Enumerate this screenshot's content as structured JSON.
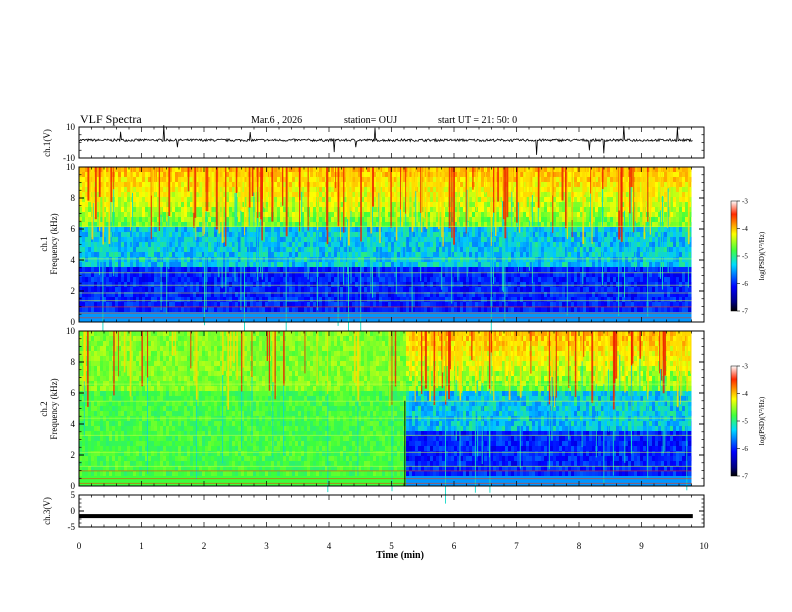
{
  "header": {
    "title": "VLF Spectra",
    "date": "Mar.6  , 2026",
    "station": "station= OUJ",
    "start": "start  UT  =   21: 50: 0"
  },
  "colors": {
    "spectrogram_low": "#00007f",
    "spectrogram_high": "#bf0000",
    "trace": "#000000"
  },
  "chart_data": [
    {
      "type": "line",
      "name": "ch1-waveform",
      "ylabel": "ch.1(V)",
      "ylim": [
        -10,
        10
      ],
      "yticks": [
        "10",
        "-10"
      ],
      "xlim": [
        0,
        10
      ],
      "description_value_baseline": 1.5
    },
    {
      "type": "heatmap",
      "name": "ch1-spectrogram",
      "ylabel": "ch.1\nFrequency  (kHz)",
      "ylabel_lines": [
        "ch.1",
        "Frequency  (kHz)"
      ],
      "ylim": [
        0,
        10
      ],
      "yticks": [
        "10",
        "8",
        "6",
        "4",
        "2",
        "0"
      ],
      "xlim": [
        0,
        10
      ],
      "data_end_min": 9.8,
      "colorbar": {
        "label": "log(PSD)(V²/Hz)",
        "range": [
          -7,
          -3
        ],
        "ticks": [
          "-3",
          "-4",
          "-5",
          "-6",
          "-7"
        ]
      }
    },
    {
      "type": "heatmap",
      "name": "ch2-spectrogram",
      "ylabel": "ch.2\nFrequency  (kHz)",
      "ylabel_lines": [
        "ch.2",
        "Frequency  (kHz)"
      ],
      "ylim": [
        0,
        10
      ],
      "yticks": [
        "10",
        "8",
        "6",
        "4",
        "2",
        "0"
      ],
      "xlim": [
        0,
        10
      ],
      "data_end_min": 9.8,
      "transition_min": 5.2,
      "colorbar": {
        "label": "log(PSD)(V²/Hz)",
        "range": [
          -7,
          -3
        ],
        "ticks": [
          "-3",
          "-4",
          "-5",
          "-6",
          "-7"
        ]
      }
    },
    {
      "type": "line",
      "name": "ch3-waveform",
      "ylabel": "ch.3(V)",
      "ylim": [
        -5,
        5
      ],
      "yticks": [
        "5",
        "0",
        "-5"
      ],
      "xlim": [
        0,
        10
      ],
      "constant_value": -1.6
    }
  ],
  "xaxis": {
    "label": "Time  (min)",
    "ticks": [
      "0",
      "1",
      "2",
      "3",
      "4",
      "5",
      "6",
      "7",
      "8",
      "9",
      "10"
    ]
  }
}
